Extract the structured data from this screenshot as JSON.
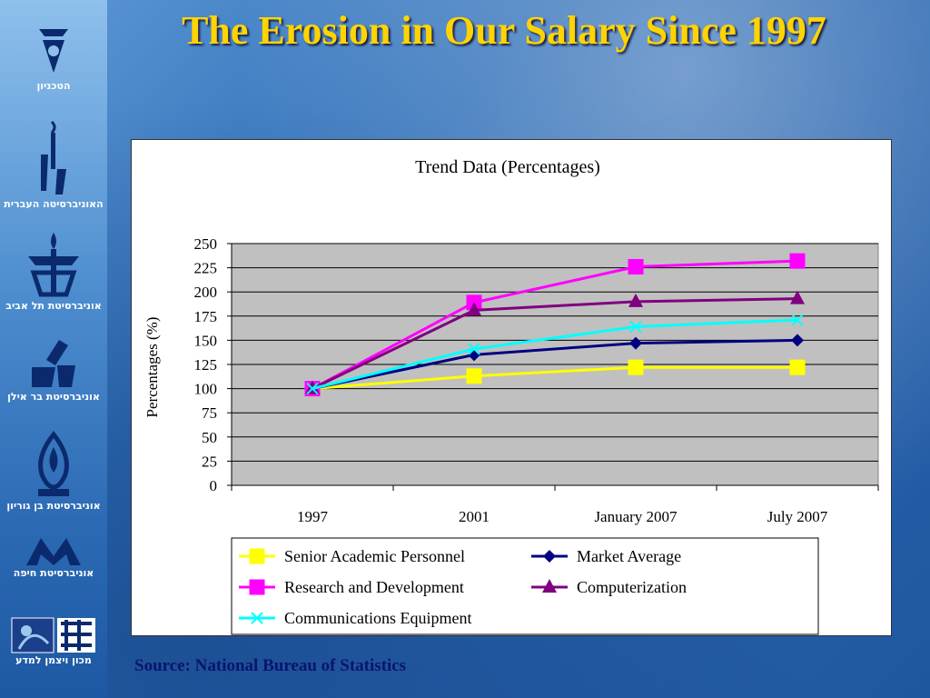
{
  "slide": {
    "title": "The Erosion in Our Salary Since 1997",
    "source": "Source: National Bureau of Statistics"
  },
  "sidebar": {
    "logos": [
      {
        "icon": "technion-logo-icon",
        "label": "הטכניון"
      },
      {
        "icon": "hebrew-university-logo-icon",
        "label": "האוניברסיטה העברית"
      },
      {
        "icon": "tel-aviv-university-logo-icon",
        "label": "אוניברסיטת תל אביב"
      },
      {
        "icon": "bar-ilan-university-logo-icon",
        "label": "אוניברסיטת בר אילן"
      },
      {
        "icon": "ben-gurion-university-logo-icon",
        "label": "אוניברסיטת בן גוריון"
      },
      {
        "icon": "haifa-university-logo-icon",
        "label": "אוניברסיטת חיפה"
      },
      {
        "icon": "weizmann-institute-logo-icon",
        "label": "מכון ויצמן למדע"
      }
    ]
  },
  "colors": {
    "title": "#ffd400",
    "plot_bg": "#c0c0c0",
    "source_text": "#0a1470"
  },
  "chart_data": {
    "type": "line",
    "title": "Trend Data (Percentages)",
    "xlabel": "",
    "ylabel": "Percentages (%)",
    "categories": [
      "1997",
      "2001",
      "January 2007",
      "July 2007"
    ],
    "ylim": [
      0,
      250
    ],
    "yticks": [
      0,
      25,
      50,
      75,
      100,
      125,
      150,
      175,
      200,
      225,
      250
    ],
    "grid": true,
    "legend_position": "bottom",
    "series": [
      {
        "name": "Senior Academic Personnel",
        "color": "#ffff00",
        "marker": "square",
        "values": [
          100,
          113,
          122,
          122
        ]
      },
      {
        "name": "Market Average",
        "color": "#000080",
        "marker": "diamond",
        "values": [
          100,
          135,
          147,
          150
        ]
      },
      {
        "name": "Research and Development",
        "color": "#ff00ff",
        "marker": "square",
        "values": [
          100,
          189,
          226,
          232
        ]
      },
      {
        "name": "Computerization",
        "color": "#800080",
        "marker": "triangle",
        "values": [
          100,
          181,
          190,
          193
        ]
      },
      {
        "name": "Communications Equipment",
        "color": "#00ffff",
        "marker": "x",
        "values": [
          100,
          141,
          164,
          171
        ]
      }
    ]
  }
}
